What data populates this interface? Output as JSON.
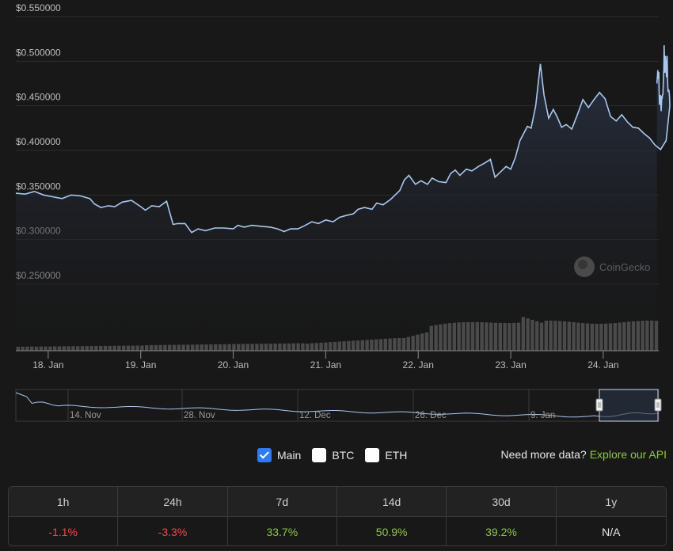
{
  "chart_data": {
    "type": "area",
    "currency_format": "$0.000000",
    "y_ticks": [
      "$0.550000",
      "$0.500000",
      "$0.450000",
      "$0.400000",
      "$0.350000",
      "$0.300000",
      "$0.250000"
    ],
    "y_tick_values": [
      0.55,
      0.5,
      0.45,
      0.4,
      0.35,
      0.3,
      0.25
    ],
    "ylim": [
      0.25,
      0.55
    ],
    "x_ticks": [
      "18. Jan",
      "19. Jan",
      "20. Jan",
      "21. Jan",
      "22. Jan",
      "23. Jan",
      "24. Jan"
    ],
    "x_range_days": [
      -0.35,
      6.6
    ],
    "price_series": {
      "name": "Main",
      "points": [
        [
          -0.35,
          0.352
        ],
        [
          -0.25,
          0.351
        ],
        [
          -0.15,
          0.354
        ],
        [
          -0.05,
          0.35
        ],
        [
          0.05,
          0.348
        ],
        [
          0.15,
          0.346
        ],
        [
          0.25,
          0.35
        ],
        [
          0.35,
          0.349
        ],
        [
          0.45,
          0.346
        ],
        [
          0.5,
          0.34
        ],
        [
          0.57,
          0.336
        ],
        [
          0.65,
          0.338
        ],
        [
          0.72,
          0.337
        ],
        [
          0.8,
          0.342
        ],
        [
          0.9,
          0.344
        ],
        [
          1.0,
          0.337
        ],
        [
          1.05,
          0.333
        ],
        [
          1.12,
          0.338
        ],
        [
          1.2,
          0.337
        ],
        [
          1.28,
          0.343
        ],
        [
          1.35,
          0.317
        ],
        [
          1.4,
          0.318
        ],
        [
          1.48,
          0.318
        ],
        [
          1.55,
          0.308
        ],
        [
          1.62,
          0.312
        ],
        [
          1.7,
          0.31
        ],
        [
          1.8,
          0.313
        ],
        [
          1.9,
          0.313
        ],
        [
          2.0,
          0.312
        ],
        [
          2.05,
          0.316
        ],
        [
          2.12,
          0.314
        ],
        [
          2.2,
          0.316
        ],
        [
          2.3,
          0.315
        ],
        [
          2.4,
          0.314
        ],
        [
          2.48,
          0.312
        ],
        [
          2.55,
          0.309
        ],
        [
          2.62,
          0.312
        ],
        [
          2.7,
          0.312
        ],
        [
          2.78,
          0.316
        ],
        [
          2.85,
          0.32
        ],
        [
          2.92,
          0.318
        ],
        [
          3.0,
          0.322
        ],
        [
          3.08,
          0.32
        ],
        [
          3.15,
          0.325
        ],
        [
          3.22,
          0.327
        ],
        [
          3.3,
          0.329
        ],
        [
          3.35,
          0.334
        ],
        [
          3.42,
          0.336
        ],
        [
          3.5,
          0.334
        ],
        [
          3.55,
          0.341
        ],
        [
          3.62,
          0.339
        ],
        [
          3.7,
          0.345
        ],
        [
          3.75,
          0.35
        ],
        [
          3.8,
          0.355
        ],
        [
          3.85,
          0.367
        ],
        [
          3.9,
          0.372
        ],
        [
          3.97,
          0.362
        ],
        [
          4.03,
          0.366
        ],
        [
          4.1,
          0.362
        ],
        [
          4.15,
          0.369
        ],
        [
          4.22,
          0.365
        ],
        [
          4.3,
          0.364
        ],
        [
          4.35,
          0.374
        ],
        [
          4.4,
          0.378
        ],
        [
          4.45,
          0.372
        ],
        [
          4.52,
          0.379
        ],
        [
          4.58,
          0.377
        ],
        [
          4.65,
          0.382
        ],
        [
          4.72,
          0.386
        ],
        [
          4.78,
          0.39
        ],
        [
          4.83,
          0.37
        ],
        [
          4.9,
          0.377
        ],
        [
          4.95,
          0.382
        ],
        [
          5.0,
          0.379
        ],
        [
          5.05,
          0.392
        ],
        [
          5.1,
          0.411
        ],
        [
          5.18,
          0.427
        ],
        [
          5.22,
          0.425
        ],
        [
          5.27,
          0.45
        ],
        [
          5.32,
          0.497
        ],
        [
          5.36,
          0.462
        ],
        [
          5.41,
          0.436
        ],
        [
          5.46,
          0.446
        ],
        [
          5.5,
          0.438
        ],
        [
          5.55,
          0.426
        ],
        [
          5.6,
          0.429
        ],
        [
          5.66,
          0.424
        ],
        [
          5.72,
          0.44
        ],
        [
          5.78,
          0.457
        ],
        [
          5.84,
          0.448
        ],
        [
          5.9,
          0.457
        ],
        [
          5.96,
          0.465
        ],
        [
          6.02,
          0.458
        ],
        [
          6.08,
          0.438
        ],
        [
          6.14,
          0.433
        ],
        [
          6.2,
          0.44
        ],
        [
          6.26,
          0.432
        ],
        [
          6.32,
          0.426
        ],
        [
          6.38,
          0.425
        ],
        [
          6.44,
          0.419
        ],
        [
          6.5,
          0.414
        ],
        [
          6.56,
          0.406
        ],
        [
          6.62,
          0.401
        ],
        [
          6.68,
          0.411
        ],
        [
          6.72,
          0.45
        ]
      ]
    },
    "volume_series": {
      "name": "Volume"
    }
  },
  "x_axis_days": [
    -0.35,
    6.6
  ],
  "navigator": {
    "labels": [
      "14. Nov",
      "28. Nov",
      "12. Dec",
      "26. Dec",
      "9. Jan"
    ]
  },
  "watermark": "CoinGecko",
  "toggles": [
    {
      "label": "Main",
      "checked": true
    },
    {
      "label": "BTC",
      "checked": false
    },
    {
      "label": "ETH",
      "checked": false
    }
  ],
  "more_data": {
    "text": "Need more data?",
    "link": "Explore our API"
  },
  "performance": {
    "headers": [
      "1h",
      "24h",
      "7d",
      "14d",
      "30d",
      "1y"
    ],
    "values": [
      {
        "text": "-1.1%",
        "trend": "neg"
      },
      {
        "text": "-3.3%",
        "trend": "neg"
      },
      {
        "text": "33.7%",
        "trend": "pos"
      },
      {
        "text": "50.9%",
        "trend": "pos"
      },
      {
        "text": "39.2%",
        "trend": "pos"
      },
      {
        "text": "N/A",
        "trend": "na"
      }
    ]
  },
  "colors": {
    "line": "#a8c7f0",
    "area_top": "#2a3347",
    "area_bottom": "#181818",
    "grid": "#2e2e2e",
    "volume": "#4a4a4a",
    "positive": "#8dc647",
    "negative": "#f04a4a"
  }
}
